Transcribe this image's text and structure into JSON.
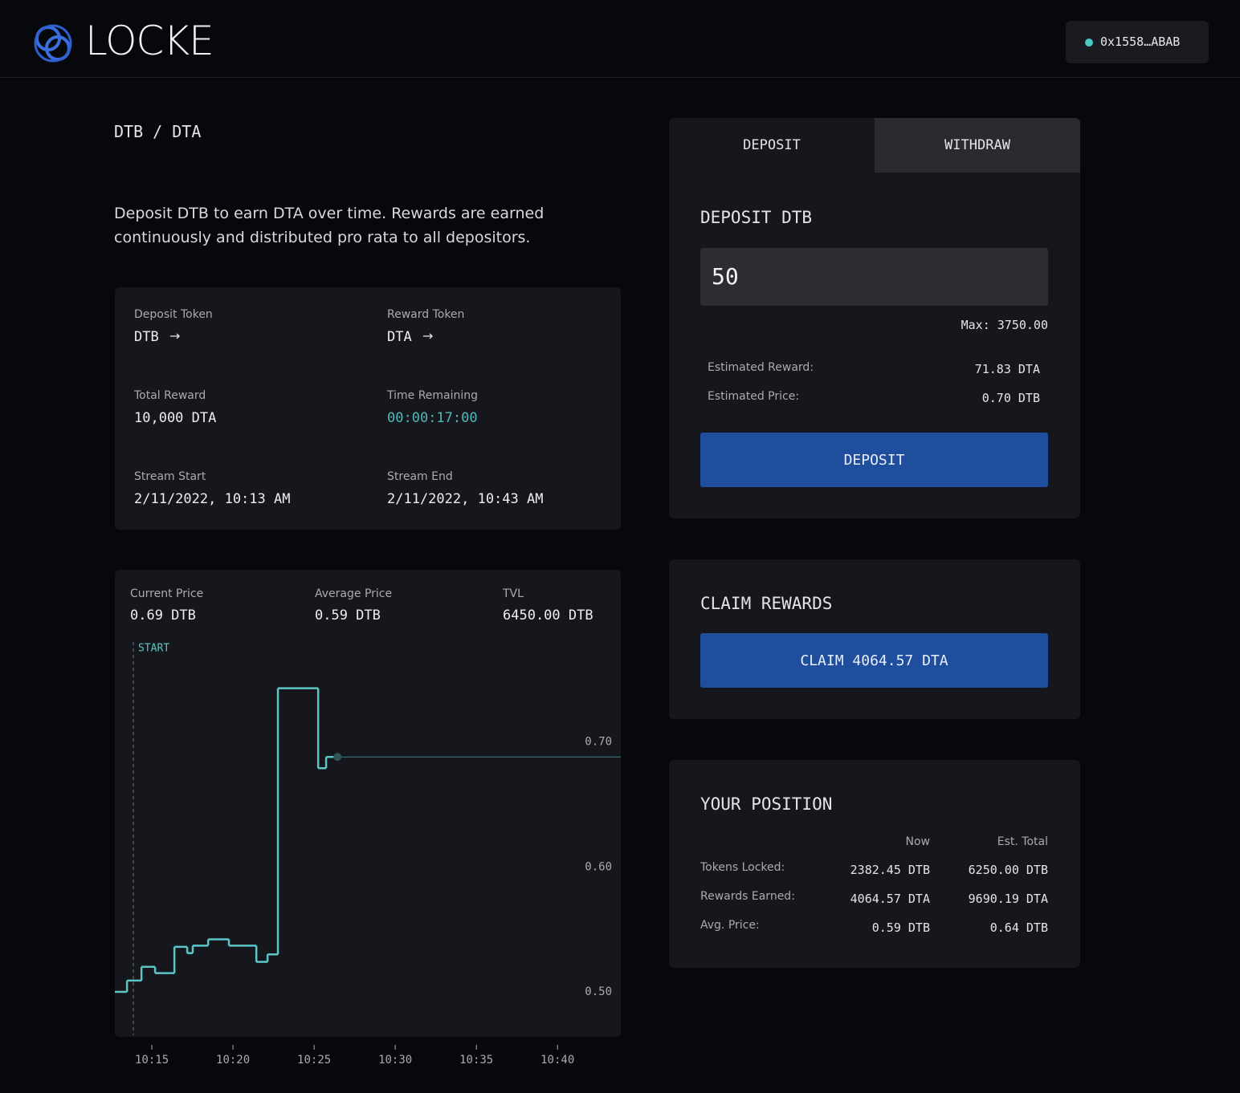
{
  "header": {
    "logo": "LOCKE",
    "wallet": "0x1558…ABAB"
  },
  "pool": {
    "pair": "DTB / DTA",
    "description": "Deposit DTB to earn DTA over time. Rewards are earned continuously and distributed pro rata to all depositors."
  },
  "details": [
    {
      "label": "Deposit Token",
      "value": "DTB"
    },
    {
      "label": "Reward Token",
      "value": "DTA"
    },
    {
      "label": "Total Reward",
      "value": "10,000 DTA"
    },
    {
      "label": "Time Remaining",
      "value": "00:00:17:00"
    },
    {
      "label": "Stream Start",
      "value": "2/11/2022, 10:13 AM"
    },
    {
      "label": "Stream End",
      "value": "2/11/2022, 10:43 AM"
    }
  ],
  "stats": [
    {
      "label": "Current Price",
      "value": "0.69 DTB"
    },
    {
      "label": "Average Price",
      "value": "0.59 DTB"
    },
    {
      "label": "TVL",
      "value": "6450.00 DTB"
    }
  ],
  "chart_data": {
    "type": "line",
    "step": "post",
    "color": "#5cc6c6",
    "x": [
      12.72,
      13.47,
      14.36,
      15.2,
      16.39,
      17.18,
      17.52,
      18.47,
      19.75,
      21.44,
      22.13,
      22.77,
      25.25,
      25.74,
      26.44
    ],
    "values": [
      0.5,
      0.509,
      0.52,
      0.515,
      0.536,
      0.531,
      0.537,
      0.542,
      0.537,
      0.524,
      0.53,
      0.743,
      0.679,
      0.688,
      0.688
    ],
    "xlim": [
      12.72,
      43.9
    ],
    "xticks": [
      {
        "value": 15,
        "label": "10:15"
      },
      {
        "value": 20,
        "label": "10:20"
      },
      {
        "value": 25,
        "label": "10:25"
      },
      {
        "value": 30,
        "label": "10:30"
      },
      {
        "value": 35,
        "label": "10:35"
      },
      {
        "value": 40,
        "label": "10:40"
      }
    ],
    "ylim": [
      0.464,
      0.78
    ],
    "yticks": [
      {
        "value": 0.5,
        "label": "0.50"
      },
      {
        "value": 0.6,
        "label": "0.60"
      },
      {
        "value": 0.7,
        "label": "0.70"
      }
    ],
    "annotation": {
      "x": 13.86,
      "label": "START"
    }
  },
  "deposit_panel": {
    "tabs": [
      "DEPOSIT",
      "WITHDRAW"
    ],
    "title": "DEPOSIT DTB",
    "input": "50",
    "max": "Max: 3750.00",
    "rows": [
      {
        "label": "Estimated Reward:",
        "value": "71.83 DTA"
      },
      {
        "label": "Estimated Price:",
        "value": "0.70 DTB"
      }
    ],
    "button": "DEPOSIT"
  },
  "claim_panel": {
    "title": "CLAIM REWARDS",
    "button": "CLAIM 4064.57 DTA"
  },
  "position": {
    "title": "YOUR POSITION",
    "columns": [
      "Now",
      "Est. Total"
    ],
    "rows": [
      {
        "label": "Tokens Locked:",
        "now": "2382.45 DTB",
        "total": "6250.00 DTB"
      },
      {
        "label": "Rewards Earned:",
        "now": "4064.57 DTA",
        "total": "9690.19 DTA"
      },
      {
        "label": "Avg. Price:",
        "now": "0.59 DTB",
        "total": "0.64 DTB"
      }
    ]
  }
}
